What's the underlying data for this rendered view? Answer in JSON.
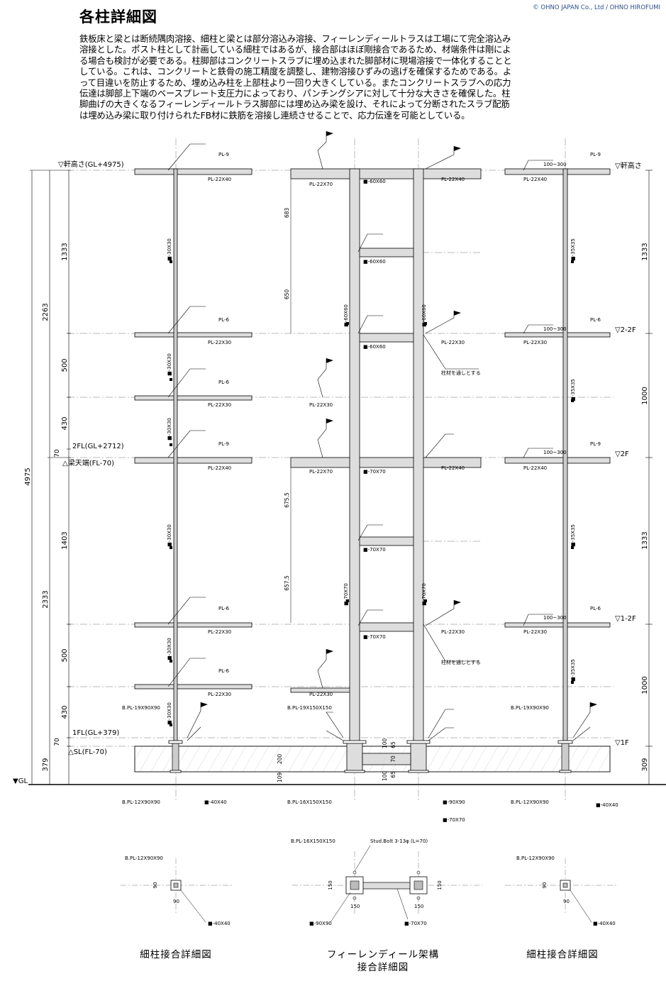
{
  "title": "各柱詳細図",
  "credit": "© OHNO JAPAN Co., Ltd / OHNO HIROFUMI",
  "description": [
    "鉄板床と梁とは断続隅肉溶接、細柱と梁とは部分溶込み溶接、フィーレンディールトラスは工場にて完全溶込み",
    "溶接とした。ポスト柱として計画している細柱ではあるが、接合部はほぼ剛接合であるため、材端条件は剛によ",
    "る場合も検討が必要である。柱脚部はコンクリートスラブに埋め込まれた脚部材に現場溶接で一体化することと",
    "している。これは、コンクリートと鉄骨の施工精度を調整し、建物溶接ひずみの逃げを確保するためである。よ",
    "って目違いを防止するため、埋め込み柱を上部柱より一回り大きくしている。またコンクリートスラブへの応力",
    "伝達は脚部上下端のベースプレート支圧力によっており、パンチングシアに対して十分な大きさを確保した。柱",
    "脚曲げの大きくなるフィーレンディールトラス脚部には埋め込み梁を設け、それによって分断されたスラブ配筋",
    "は埋め込み梁に取り付けられたFB材に鉄筋を溶接し連続させることで、応力伝達を可能としている。"
  ],
  "levels": {
    "eaves_left": "▽軒高さ(GL+4975)",
    "fl2_left": "2FL(GL+2712)",
    "beam_top_left": "△梁天端(FL-70)",
    "fl1_left": "1FL(GL+379)",
    "sl_left": "△SL(FL-70)",
    "gl": "▼GL",
    "eaves_right": "▽軒高さ",
    "f2_2_right": "▽2-2F",
    "f2_right": "▽2F",
    "f1_2_right": "▽1-2F",
    "f1_right": "▽1F"
  },
  "dims_left": {
    "total": "4975",
    "upper": "2263",
    "lower": "2333",
    "d1333": "1333",
    "d500a": "500",
    "d430a": "430",
    "d70a": "70",
    "d1403": "1403",
    "d500b": "500",
    "d430b": "430",
    "d70b": "70",
    "d379": "379"
  },
  "dims_right": {
    "d1333a": "1333",
    "d1000a": "1000",
    "d1333b": "1333",
    "d1000b": "1000",
    "d309": "309"
  },
  "dims_truss": {
    "d683": "683",
    "d650": "650",
    "d6755": "675.5",
    "d6575": "657.5",
    "d200": "200",
    "d109": "109",
    "d100a": "100",
    "d65a": "65",
    "d70": "70",
    "d100b": "100",
    "d65b": "65"
  },
  "labels": {
    "pl9": "PL-9",
    "pl6": "PL-6",
    "pl22x40": "PL-22X40",
    "pl22x30": "PL-22X30",
    "pl22x70": "PL-22X70",
    "r100_300": "100~300",
    "sq60": "■-60X60",
    "sq70": "■-70X70",
    "col30": "■-30X30",
    "col35": "■-35X35",
    "col60v": "■-60X60",
    "col70v": "■-70X70",
    "through": "柱材を通しとする",
    "bpl19_90": "B.PL-19X90X90",
    "bpl19_150": "B.PL-19X150X150",
    "bpl12_90": "B.PL-12X90X90",
    "bpl16_150": "B.PL-16X150X150",
    "sq40": "■-40X40",
    "sq90": "■-90X90",
    "stud": "Stud.Bolt 3-13φ (L=70)",
    "d90": "90",
    "d150": "150"
  },
  "captions": {
    "left": "細柱接合詳細図",
    "center_1": "フィーレンディール架構",
    "center_2": "接合詳細図",
    "right": "細柱接合詳細図"
  }
}
